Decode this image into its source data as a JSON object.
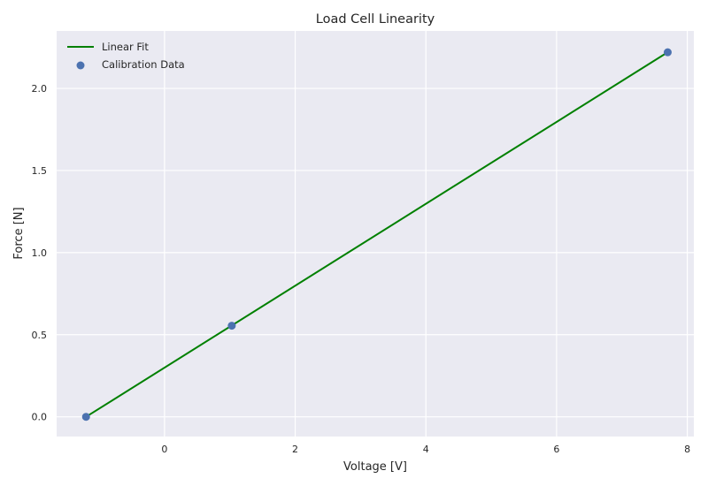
{
  "chart_data": {
    "type": "scatter",
    "title": "Load Cell Linearity",
    "xlabel": "Voltage [V]",
    "ylabel": "Force [N]",
    "xlim": [
      -1.65,
      8.1
    ],
    "ylim": [
      -0.12,
      2.35
    ],
    "xticks": [
      0,
      2,
      4,
      6,
      8
    ],
    "yticks": [
      0.0,
      0.5,
      1.0,
      1.5,
      2.0
    ],
    "xtick_labels": [
      "0",
      "2",
      "4",
      "6",
      "8"
    ],
    "ytick_labels": [
      "0.0",
      "0.5",
      "1.0",
      "1.5",
      "2.0"
    ],
    "grid": true,
    "legend_position": "top-left",
    "series": [
      {
        "name": "Linear Fit",
        "kind": "line",
        "color": "#008000",
        "x": [
          -1.2,
          7.7
        ],
        "y": [
          0.0,
          2.22
        ]
      },
      {
        "name": "Calibration Data",
        "kind": "scatter",
        "color": "#4c72b0",
        "x": [
          -1.2,
          1.03,
          7.7
        ],
        "y": [
          0.0,
          0.555,
          2.22
        ]
      }
    ]
  },
  "colors": {
    "plot_background": "#eaeaf2",
    "grid": "#ffffff",
    "text": "#262626"
  }
}
